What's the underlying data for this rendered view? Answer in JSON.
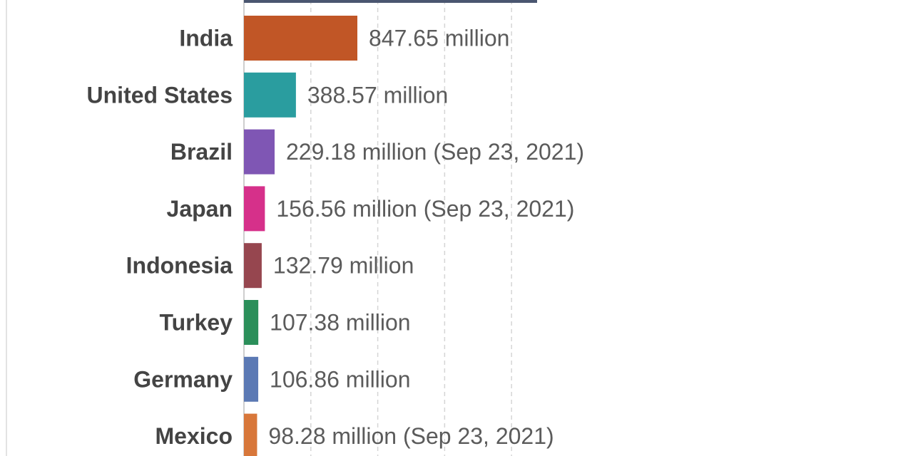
{
  "chart_data": {
    "type": "bar",
    "orientation": "horizontal",
    "grid": true,
    "xlim": [
      0,
      1400
    ],
    "categories": [
      "India",
      "United States",
      "Brazil",
      "Japan",
      "Indonesia",
      "Turkey",
      "Germany",
      "Mexico"
    ],
    "values": [
      847.65,
      388.57,
      229.18,
      156.56,
      132.79,
      107.38,
      106.86,
      98.28
    ],
    "value_labels": [
      "847.65 million",
      "388.57 million",
      "229.18 million (Sep 23, 2021)",
      "156.56 million (Sep 23, 2021)",
      "132.79 million",
      "107.38 million",
      "106.86 million",
      "98.28 million (Sep 23, 2021)"
    ],
    "colors": [
      "#c15626",
      "#2a9d9f",
      "#7f56b4",
      "#d6308a",
      "#96464f",
      "#2b8f5a",
      "#5b79b4",
      "#d8773a"
    ],
    "cropped_top_bar": {
      "color": "#4a5670"
    }
  }
}
